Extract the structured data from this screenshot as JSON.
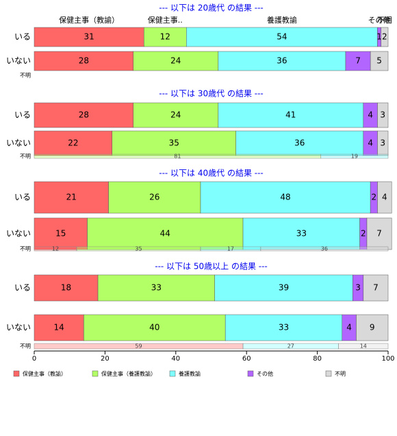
{
  "chart_data": {
    "type": "bar",
    "orientation": "horizontal",
    "stacked": true,
    "xlim": [
      0,
      100
    ],
    "x_ticks": [
      "0",
      "20",
      "40",
      "60",
      "80",
      "100"
    ],
    "categories": [
      "保健主事（教諭）",
      "保健主事（養護教諭）",
      "養護教諭",
      "その他",
      "不明"
    ],
    "top_category_labels": [
      "保健主事（教諭）",
      "保健主事..",
      "養護教諭",
      "その他",
      "不明"
    ],
    "colors": [
      "#ff6666",
      "#b3ff66",
      "#80ffff",
      "#b366ff",
      "#d9d9d9"
    ],
    "legend_position": "bottom",
    "groups": [
      {
        "title": "--- 以下は 20歳代 の結果 ---",
        "rows": [
          {
            "label": "いる",
            "values": [
              31,
              12,
              54,
              1,
              2
            ],
            "value_labels": [
              "31",
              "12",
              "54",
              "1",
              "2"
            ]
          },
          {
            "label": "いない",
            "values": [
              28,
              24,
              36,
              7,
              5
            ],
            "value_labels": [
              "28",
              "24",
              "36",
              "7",
              "5"
            ]
          }
        ],
        "unknown": {
          "label": "不明",
          "values": [],
          "value_labels": []
        }
      },
      {
        "title": "--- 以下は 30歳代 の結果 ---",
        "rows": [
          {
            "label": "いる",
            "values": [
              28,
              24,
              41,
              4,
              3
            ],
            "value_labels": [
              "28",
              "24",
              "41",
              "4",
              "3"
            ]
          },
          {
            "label": "いない",
            "values": [
              22,
              35,
              36,
              4,
              3
            ],
            "value_labels": [
              "22",
              "35",
              "36",
              "4",
              "3"
            ]
          }
        ],
        "unknown": {
          "label": "不明",
          "values": [
            0,
            81,
            19,
            0,
            0
          ],
          "value_labels": [
            "",
            "81",
            "19",
            "",
            ""
          ]
        }
      },
      {
        "title": "--- 以下は 40歳代 の結果 ---",
        "rows": [
          {
            "label": "いる",
            "values": [
              21,
              26,
              48,
              2,
              4
            ],
            "value_labels": [
              "21",
              "26",
              "48",
              "2",
              "4"
            ]
          },
          {
            "label": "いない",
            "values": [
              15,
              44,
              33,
              2,
              7
            ],
            "value_labels": [
              "15",
              "44",
              "33",
              "2",
              "7"
            ]
          }
        ],
        "unknown": {
          "label": "不明",
          "values": [
            12,
            35,
            17,
            0,
            36
          ],
          "value_labels": [
            "12",
            "35",
            "17",
            "",
            "36"
          ]
        }
      },
      {
        "title": "--- 以下は 50歳以上 の結果 ---",
        "rows": [
          {
            "label": "いる",
            "values": [
              18,
              33,
              39,
              3,
              7
            ],
            "value_labels": [
              "18",
              "33",
              "39",
              "3",
              "7"
            ]
          },
          {
            "label": "いない",
            "values": [
              14,
              40,
              33,
              4,
              9
            ],
            "value_labels": [
              "14",
              "40",
              "33",
              "4",
              "9"
            ]
          }
        ],
        "unknown": {
          "label": "不明",
          "values": [
            59,
            0,
            27,
            0,
            14
          ],
          "value_labels": [
            "59",
            "",
            "27",
            "",
            "14"
          ]
        }
      }
    ]
  }
}
